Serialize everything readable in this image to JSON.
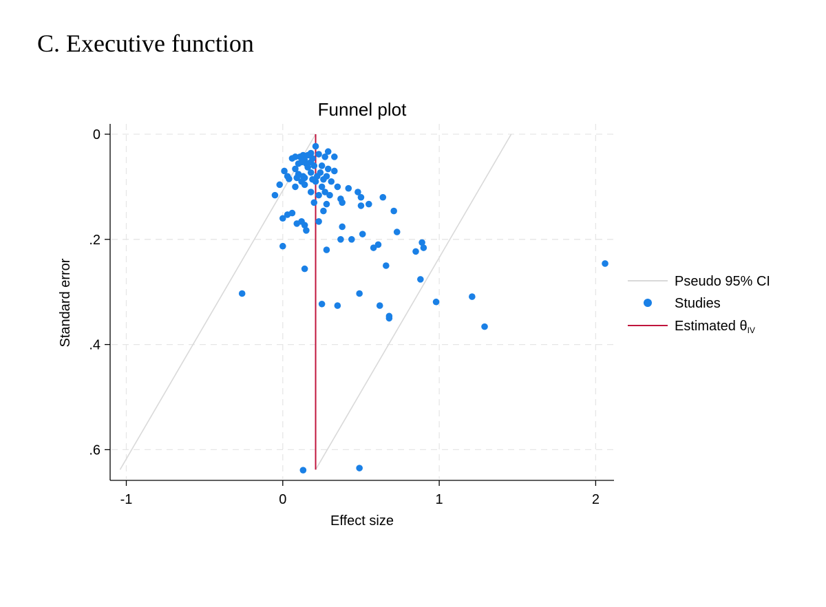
{
  "panel_title": "C. Executive function",
  "colors": {
    "ci": "#d9d9d9",
    "studies": "#1a80e6",
    "estimate": "#c0143c",
    "grid": "#e6e6e6",
    "axis": "#000000"
  },
  "chart_data": {
    "type": "scatter",
    "title": "Funnel plot",
    "xlabel": "Effect size",
    "ylabel": "Standard error",
    "xlim": [
      -1.1,
      2.12
    ],
    "ylim": [
      0,
      0.66
    ],
    "y_reversed": true,
    "grid": true,
    "legend_position": "right",
    "x_ticks": [
      -1,
      0,
      1,
      2
    ],
    "x_tick_labels": [
      "-1",
      "0",
      "1",
      "2"
    ],
    "y_ticks": [
      0,
      0.2,
      0.4,
      0.6
    ],
    "y_tick_labels": [
      "0",
      ".2",
      ".4",
      ".6"
    ],
    "legend": {
      "ci": "Pseudo 95% CI",
      "studies": "Studies",
      "estimate_prefix": "Estimated θ",
      "estimate_sub": "IV"
    },
    "estimate_theta": 0.21,
    "ci_lines": [
      {
        "x": [
          0.21,
          -1.04
        ],
        "y": [
          0,
          0.638
        ]
      },
      {
        "x": [
          0.21,
          1.46
        ],
        "y": [
          0.638,
          0
        ]
      }
    ],
    "estimate_line": {
      "x": [
        0.21,
        0.21
      ],
      "y": [
        0,
        0.638
      ]
    },
    "series": [
      {
        "name": "Studies",
        "points": [
          [
            0.21,
            0.023
          ],
          [
            0.29,
            0.033
          ],
          [
            0.18,
            0.036
          ],
          [
            0.23,
            0.038
          ],
          [
            0.13,
            0.04
          ],
          [
            0.16,
            0.04
          ],
          [
            0.08,
            0.043
          ],
          [
            0.11,
            0.043
          ],
          [
            0.27,
            0.043
          ],
          [
            0.33,
            0.043
          ],
          [
            0.19,
            0.046
          ],
          [
            0.14,
            0.05
          ],
          [
            0.06,
            0.046
          ],
          [
            0.12,
            0.053
          ],
          [
            0.18,
            0.053
          ],
          [
            0.1,
            0.056
          ],
          [
            0.15,
            0.056
          ],
          [
            0.2,
            0.06
          ],
          [
            0.25,
            0.06
          ],
          [
            0.16,
            0.063
          ],
          [
            0.01,
            0.07
          ],
          [
            0.08,
            0.066
          ],
          [
            0.29,
            0.066
          ],
          [
            0.33,
            0.07
          ],
          [
            0.03,
            0.08
          ],
          [
            0.1,
            0.076
          ],
          [
            0.18,
            0.073
          ],
          [
            0.24,
            0.073
          ],
          [
            0.13,
            0.08
          ],
          [
            0.22,
            0.08
          ],
          [
            0.28,
            0.08
          ],
          [
            0.04,
            0.085
          ],
          [
            0.09,
            0.083
          ],
          [
            0.14,
            0.083
          ],
          [
            0.19,
            0.086
          ],
          [
            0.26,
            0.086
          ],
          [
            0.12,
            0.09
          ],
          [
            0.21,
            0.09
          ],
          [
            0.31,
            0.09
          ],
          [
            -0.02,
            0.096
          ],
          [
            0.08,
            0.1
          ],
          [
            0.14,
            0.096
          ],
          [
            0.25,
            0.1
          ],
          [
            0.35,
            0.1
          ],
          [
            0.18,
            0.11
          ],
          [
            0.27,
            0.11
          ],
          [
            0.42,
            0.103
          ],
          [
            0.48,
            0.11
          ],
          [
            0.23,
            0.116
          ],
          [
            0.3,
            0.116
          ],
          [
            0.37,
            0.123
          ],
          [
            0.5,
            0.12
          ],
          [
            0.64,
            0.12
          ],
          [
            -0.05,
            0.116
          ],
          [
            0.2,
            0.13
          ],
          [
            0.28,
            0.133
          ],
          [
            0.38,
            0.13
          ],
          [
            0.55,
            0.133
          ],
          [
            0.5,
            0.136
          ],
          [
            0.26,
            0.146
          ],
          [
            0.71,
            0.146
          ],
          [
            0.03,
            0.153
          ],
          [
            0.06,
            0.15
          ],
          [
            0.0,
            0.16
          ],
          [
            0.12,
            0.166
          ],
          [
            0.23,
            0.166
          ],
          [
            0.09,
            0.17
          ],
          [
            0.14,
            0.173
          ],
          [
            0.38,
            0.176
          ],
          [
            0.15,
            0.183
          ],
          [
            0.73,
            0.186
          ],
          [
            0.51,
            0.19
          ],
          [
            0.44,
            0.2
          ],
          [
            0.37,
            0.2
          ],
          [
            0.61,
            0.21
          ],
          [
            0.89,
            0.206
          ],
          [
            0.0,
            0.213
          ],
          [
            0.58,
            0.216
          ],
          [
            0.9,
            0.216
          ],
          [
            0.28,
            0.22
          ],
          [
            0.85,
            0.223
          ],
          [
            0.66,
            0.25
          ],
          [
            0.14,
            0.256
          ],
          [
            2.06,
            0.246
          ],
          [
            0.88,
            0.276
          ],
          [
            -0.26,
            0.303
          ],
          [
            0.49,
            0.303
          ],
          [
            1.21,
            0.309
          ],
          [
            0.98,
            0.319
          ],
          [
            0.25,
            0.323
          ],
          [
            0.35,
            0.326
          ],
          [
            0.62,
            0.326
          ],
          [
            0.68,
            0.346
          ],
          [
            0.68,
            0.35
          ],
          [
            1.29,
            0.366
          ],
          [
            0.13,
            0.639
          ],
          [
            0.49,
            0.635
          ]
        ]
      }
    ]
  }
}
